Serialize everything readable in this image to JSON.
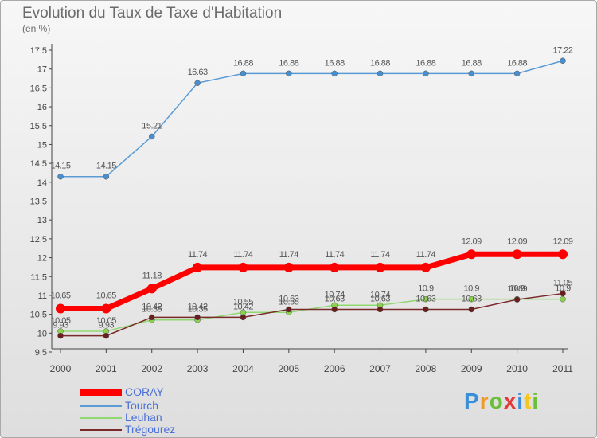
{
  "header": {
    "title": "Evolution du Taux de Taxe d'Habitation",
    "unit": "(en %)"
  },
  "logo": {
    "text": "Proxiti"
  },
  "chart_data": {
    "type": "line",
    "title": "Evolution du Taux de Taxe d'Habitation",
    "ylabel": "(en %)",
    "xlabel": "",
    "x": [
      "2000",
      "2001",
      "2002",
      "2003",
      "2004",
      "2005",
      "2006",
      "2007",
      "2008",
      "2009",
      "2010",
      "2011"
    ],
    "ylim": [
      9.5,
      17.5
    ],
    "yticks": [
      "9.5",
      "10",
      "10.5",
      "11",
      "11.5",
      "12",
      "12.5",
      "13",
      "13.5",
      "14",
      "14.5",
      "15",
      "15.5",
      "16",
      "16.5",
      "17",
      "17.5"
    ],
    "grid": false,
    "legend_position": "bottom-left",
    "series": [
      {
        "name": "CORAY",
        "color": "#ff0000",
        "values": [
          10.65,
          10.65,
          11.18,
          11.74,
          11.74,
          11.74,
          11.74,
          11.74,
          11.74,
          12.09,
          12.09,
          12.09
        ],
        "labels": [
          "10.65",
          "10.65",
          "11.18",
          "11.74",
          "11.74",
          "11.74",
          "11.74",
          "11.74",
          "11.74",
          "12.09",
          "12.09",
          "12.09"
        ]
      },
      {
        "name": "Tourch",
        "color": "#5b9bd5",
        "values": [
          14.15,
          14.15,
          15.21,
          16.63,
          16.88,
          16.88,
          16.88,
          16.88,
          16.88,
          16.88,
          16.88,
          17.22
        ],
        "labels": [
          "14.15",
          "14.15",
          "15.21",
          "16.63",
          "16.88",
          "16.88",
          "16.88",
          "16.88",
          "16.88",
          "16.88",
          "16.88",
          "17.22"
        ]
      },
      {
        "name": "Leuhan",
        "color": "#90d870",
        "values": [
          10.05,
          10.05,
          10.35,
          10.35,
          10.55,
          10.55,
          10.74,
          10.74,
          10.9,
          10.9,
          10.9,
          10.9
        ],
        "labels": [
          "10.05",
          "10.05",
          "10.35",
          "10.35",
          "10.55",
          "10.55",
          "10.74",
          "10.74",
          "10.9",
          "10.9",
          "10.9",
          "10.9"
        ]
      },
      {
        "name": "Trégourez",
        "color": "#7a2a2a",
        "values": [
          9.93,
          9.93,
          10.42,
          10.42,
          10.42,
          10.63,
          10.63,
          10.63,
          10.63,
          10.63,
          10.89,
          11.05
        ],
        "labels": [
          "9.93",
          "9.93",
          "10.42",
          "10.42",
          "10.42",
          "10.63",
          "10.63",
          "10.63",
          "10.63",
          "10.63",
          "10.89",
          "11.05"
        ]
      }
    ]
  }
}
